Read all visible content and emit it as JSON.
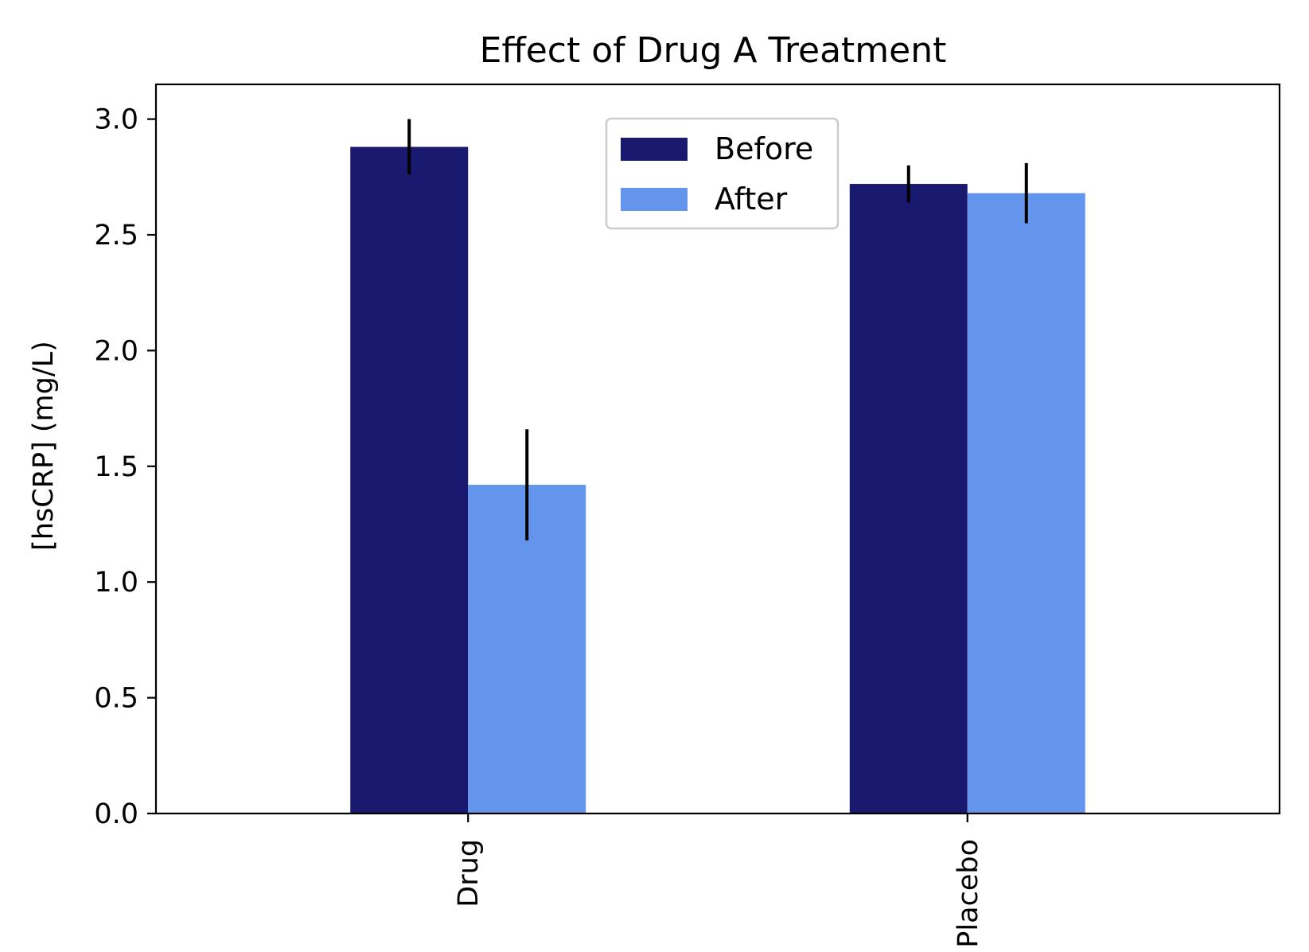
{
  "chart_data": {
    "type": "bar",
    "title": "Effect of Drug A Treatment",
    "xlabel": "",
    "ylabel": "[hsCRP] (mg/L)",
    "categories": [
      "Drug",
      "Placebo"
    ],
    "series": [
      {
        "name": "Before",
        "color": "#191970",
        "values": [
          2.88,
          2.72
        ],
        "error": [
          0.12,
          0.08
        ]
      },
      {
        "name": "After",
        "color": "#6495ED",
        "values": [
          1.42,
          2.68
        ],
        "error": [
          0.24,
          0.13
        ]
      }
    ],
    "ylim": [
      0,
      3.15
    ],
    "yticks": [
      "0.0",
      "0.5",
      "1.0",
      "1.5",
      "2.0",
      "2.5",
      "3.0"
    ],
    "ytick_values": [
      0,
      0.5,
      1.0,
      1.5,
      2.0,
      2.5,
      3.0
    ],
    "xtick_rotation": "vertical",
    "grid": false,
    "legend": {
      "placement": "upper center",
      "entries": [
        "Before",
        "After"
      ]
    },
    "error_bar_color": "#000000"
  }
}
